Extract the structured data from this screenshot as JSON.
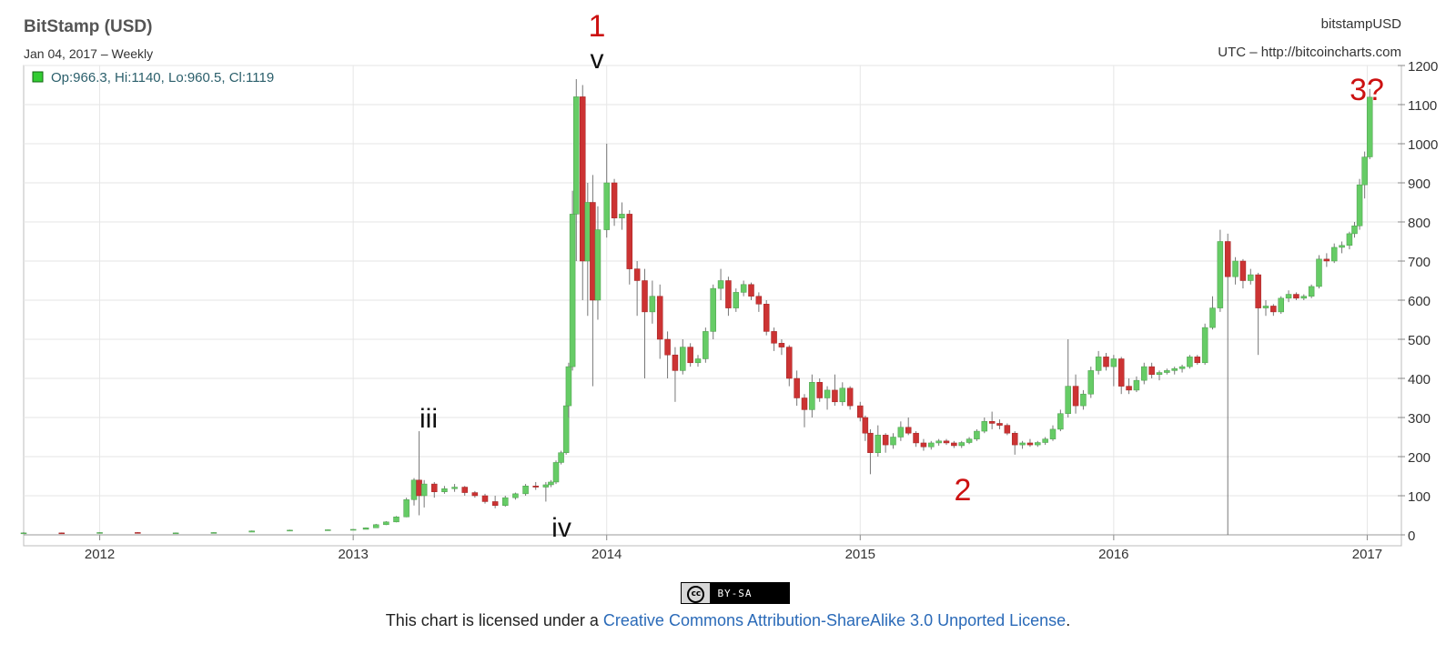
{
  "header": {
    "title": "BitStamp (USD)",
    "subtitle": "Jan 04, 2017 – Weekly",
    "legend": "Op:966.3, Hi:1140, Lo:960.5, Cl:1119",
    "source_right": "bitstampUSD",
    "source_url": "UTC – http://bitcoincharts.com"
  },
  "annotations": {
    "wave_1": "1",
    "wave_v": "v",
    "wave_iii": "iii",
    "wave_iv": "iv",
    "wave_2": "2",
    "wave_3": "3?"
  },
  "footer": {
    "badge_cc": "cc",
    "badge_label": "BY-SA",
    "license_prefix": "This chart is licensed under a ",
    "license_link": "Creative Commons Attribution-ShareAlike 3.0 Unported License",
    "license_suffix": "."
  },
  "colors": {
    "up": "#66cc66",
    "down": "#cc3333",
    "grid": "#e6e6e6",
    "annotation_red": "#cc1111",
    "annotation_black": "#111111"
  },
  "chart_data": {
    "type": "candlestick",
    "title": "BitStamp (USD)",
    "xlim": [
      2011.7,
      2017.02
    ],
    "ylim": [
      0,
      1200
    ],
    "yticks": [
      0,
      100,
      200,
      300,
      400,
      500,
      600,
      700,
      800,
      900,
      1000,
      1100,
      1200
    ],
    "xticks": [
      {
        "label": "2012",
        "value": 2012
      },
      {
        "label": "2013",
        "value": 2013
      },
      {
        "label": "2014",
        "value": 2014
      },
      {
        "label": "2015",
        "value": 2015
      },
      {
        "label": "2016",
        "value": 2016
      },
      {
        "label": "2017",
        "value": 2017
      }
    ],
    "grid": true,
    "ohlc": [
      {
        "t": 2011.7,
        "o": 5,
        "h": 7,
        "l": 3,
        "c": 5
      },
      {
        "t": 2011.85,
        "o": 5,
        "h": 6,
        "l": 3,
        "c": 4
      },
      {
        "t": 2012.0,
        "o": 4,
        "h": 7,
        "l": 4,
        "c": 6
      },
      {
        "t": 2012.15,
        "o": 6,
        "h": 7,
        "l": 4,
        "c": 5
      },
      {
        "t": 2012.3,
        "o": 5,
        "h": 6,
        "l": 4,
        "c": 5
      },
      {
        "t": 2012.45,
        "o": 5,
        "h": 7,
        "l": 5,
        "c": 6
      },
      {
        "t": 2012.6,
        "o": 7,
        "h": 11,
        "l": 7,
        "c": 10
      },
      {
        "t": 2012.75,
        "o": 11,
        "h": 13,
        "l": 10,
        "c": 12
      },
      {
        "t": 2012.9,
        "o": 12,
        "h": 14,
        "l": 11,
        "c": 13
      },
      {
        "t": 2013.0,
        "o": 13,
        "h": 15,
        "l": 13,
        "c": 14
      },
      {
        "t": 2013.05,
        "o": 14,
        "h": 19,
        "l": 14,
        "c": 18
      },
      {
        "t": 2013.09,
        "o": 18,
        "h": 28,
        "l": 18,
        "c": 26
      },
      {
        "t": 2013.13,
        "o": 26,
        "h": 35,
        "l": 25,
        "c": 33
      },
      {
        "t": 2013.17,
        "o": 33,
        "h": 48,
        "l": 32,
        "c": 46
      },
      {
        "t": 2013.21,
        "o": 46,
        "h": 95,
        "l": 45,
        "c": 90
      },
      {
        "t": 2013.24,
        "o": 90,
        "h": 145,
        "l": 75,
        "c": 140
      },
      {
        "t": 2013.26,
        "o": 140,
        "h": 265,
        "l": 50,
        "c": 100
      },
      {
        "t": 2013.28,
        "o": 100,
        "h": 140,
        "l": 70,
        "c": 130
      },
      {
        "t": 2013.32,
        "o": 130,
        "h": 135,
        "l": 95,
        "c": 110
      },
      {
        "t": 2013.36,
        "o": 110,
        "h": 125,
        "l": 105,
        "c": 118
      },
      {
        "t": 2013.4,
        "o": 118,
        "h": 130,
        "l": 110,
        "c": 122
      },
      {
        "t": 2013.44,
        "o": 122,
        "h": 125,
        "l": 100,
        "c": 108
      },
      {
        "t": 2013.48,
        "o": 108,
        "h": 112,
        "l": 95,
        "c": 100
      },
      {
        "t": 2013.52,
        "o": 100,
        "h": 105,
        "l": 80,
        "c": 85
      },
      {
        "t": 2013.56,
        "o": 85,
        "h": 100,
        "l": 68,
        "c": 75
      },
      {
        "t": 2013.6,
        "o": 75,
        "h": 100,
        "l": 72,
        "c": 95
      },
      {
        "t": 2013.64,
        "o": 95,
        "h": 108,
        "l": 90,
        "c": 105
      },
      {
        "t": 2013.68,
        "o": 105,
        "h": 130,
        "l": 100,
        "c": 125
      },
      {
        "t": 2013.72,
        "o": 125,
        "h": 135,
        "l": 115,
        "c": 122
      },
      {
        "t": 2013.76,
        "o": 122,
        "h": 135,
        "l": 85,
        "c": 128
      },
      {
        "t": 2013.78,
        "o": 128,
        "h": 140,
        "l": 122,
        "c": 135
      },
      {
        "t": 2013.8,
        "o": 135,
        "h": 190,
        "l": 130,
        "c": 185
      },
      {
        "t": 2013.82,
        "o": 185,
        "h": 215,
        "l": 180,
        "c": 210
      },
      {
        "t": 2013.84,
        "o": 210,
        "h": 340,
        "l": 205,
        "c": 330
      },
      {
        "t": 2013.85,
        "o": 330,
        "h": 440,
        "l": 300,
        "c": 430
      },
      {
        "t": 2013.865,
        "o": 430,
        "h": 880,
        "l": 420,
        "c": 820
      },
      {
        "t": 2013.88,
        "o": 820,
        "h": 1165,
        "l": 700,
        "c": 1120
      },
      {
        "t": 2013.905,
        "o": 1120,
        "h": 1150,
        "l": 600,
        "c": 700
      },
      {
        "t": 2013.925,
        "o": 700,
        "h": 900,
        "l": 560,
        "c": 850
      },
      {
        "t": 2013.945,
        "o": 850,
        "h": 920,
        "l": 380,
        "c": 600
      },
      {
        "t": 2013.965,
        "o": 600,
        "h": 840,
        "l": 550,
        "c": 780
      },
      {
        "t": 2014.0,
        "o": 780,
        "h": 1000,
        "l": 760,
        "c": 900
      },
      {
        "t": 2014.03,
        "o": 900,
        "h": 910,
        "l": 790,
        "c": 810
      },
      {
        "t": 2014.06,
        "o": 810,
        "h": 850,
        "l": 780,
        "c": 820
      },
      {
        "t": 2014.09,
        "o": 820,
        "h": 830,
        "l": 640,
        "c": 680
      },
      {
        "t": 2014.12,
        "o": 680,
        "h": 700,
        "l": 560,
        "c": 650
      },
      {
        "t": 2014.15,
        "o": 650,
        "h": 680,
        "l": 400,
        "c": 570
      },
      {
        "t": 2014.18,
        "o": 570,
        "h": 650,
        "l": 540,
        "c": 610
      },
      {
        "t": 2014.21,
        "o": 610,
        "h": 640,
        "l": 450,
        "c": 500
      },
      {
        "t": 2014.24,
        "o": 500,
        "h": 520,
        "l": 400,
        "c": 460
      },
      {
        "t": 2014.27,
        "o": 460,
        "h": 480,
        "l": 340,
        "c": 420
      },
      {
        "t": 2014.3,
        "o": 420,
        "h": 500,
        "l": 410,
        "c": 480
      },
      {
        "t": 2014.33,
        "o": 480,
        "h": 490,
        "l": 430,
        "c": 440
      },
      {
        "t": 2014.36,
        "o": 440,
        "h": 460,
        "l": 430,
        "c": 450
      },
      {
        "t": 2014.39,
        "o": 450,
        "h": 530,
        "l": 440,
        "c": 520
      },
      {
        "t": 2014.42,
        "o": 520,
        "h": 640,
        "l": 500,
        "c": 630
      },
      {
        "t": 2014.45,
        "o": 630,
        "h": 680,
        "l": 600,
        "c": 650
      },
      {
        "t": 2014.48,
        "o": 650,
        "h": 660,
        "l": 560,
        "c": 580
      },
      {
        "t": 2014.51,
        "o": 580,
        "h": 630,
        "l": 570,
        "c": 620
      },
      {
        "t": 2014.54,
        "o": 620,
        "h": 650,
        "l": 610,
        "c": 640
      },
      {
        "t": 2014.57,
        "o": 640,
        "h": 645,
        "l": 600,
        "c": 610
      },
      {
        "t": 2014.6,
        "o": 610,
        "h": 620,
        "l": 570,
        "c": 590
      },
      {
        "t": 2014.63,
        "o": 590,
        "h": 600,
        "l": 510,
        "c": 520
      },
      {
        "t": 2014.66,
        "o": 520,
        "h": 530,
        "l": 470,
        "c": 490
      },
      {
        "t": 2014.69,
        "o": 490,
        "h": 500,
        "l": 460,
        "c": 480
      },
      {
        "t": 2014.72,
        "o": 480,
        "h": 485,
        "l": 380,
        "c": 400
      },
      {
        "t": 2014.75,
        "o": 400,
        "h": 420,
        "l": 330,
        "c": 350
      },
      {
        "t": 2014.78,
        "o": 350,
        "h": 360,
        "l": 275,
        "c": 320
      },
      {
        "t": 2014.81,
        "o": 320,
        "h": 410,
        "l": 300,
        "c": 390
      },
      {
        "t": 2014.84,
        "o": 390,
        "h": 400,
        "l": 340,
        "c": 350
      },
      {
        "t": 2014.87,
        "o": 350,
        "h": 380,
        "l": 320,
        "c": 370
      },
      {
        "t": 2014.9,
        "o": 370,
        "h": 410,
        "l": 330,
        "c": 340
      },
      {
        "t": 2014.93,
        "o": 340,
        "h": 390,
        "l": 330,
        "c": 375
      },
      {
        "t": 2014.96,
        "o": 375,
        "h": 380,
        "l": 320,
        "c": 330
      },
      {
        "t": 2015.0,
        "o": 330,
        "h": 340,
        "l": 290,
        "c": 300
      },
      {
        "t": 2015.02,
        "o": 300,
        "h": 305,
        "l": 240,
        "c": 260
      },
      {
        "t": 2015.04,
        "o": 260,
        "h": 270,
        "l": 155,
        "c": 210
      },
      {
        "t": 2015.07,
        "o": 210,
        "h": 280,
        "l": 200,
        "c": 255
      },
      {
        "t": 2015.1,
        "o": 255,
        "h": 260,
        "l": 210,
        "c": 230
      },
      {
        "t": 2015.13,
        "o": 230,
        "h": 260,
        "l": 220,
        "c": 250
      },
      {
        "t": 2015.16,
        "o": 250,
        "h": 290,
        "l": 240,
        "c": 275
      },
      {
        "t": 2015.19,
        "o": 275,
        "h": 300,
        "l": 255,
        "c": 260
      },
      {
        "t": 2015.22,
        "o": 260,
        "h": 265,
        "l": 225,
        "c": 235
      },
      {
        "t": 2015.25,
        "o": 235,
        "h": 245,
        "l": 215,
        "c": 225
      },
      {
        "t": 2015.28,
        "o": 225,
        "h": 240,
        "l": 218,
        "c": 235
      },
      {
        "t": 2015.31,
        "o": 235,
        "h": 245,
        "l": 228,
        "c": 240
      },
      {
        "t": 2015.34,
        "o": 240,
        "h": 245,
        "l": 230,
        "c": 235
      },
      {
        "t": 2015.37,
        "o": 235,
        "h": 240,
        "l": 222,
        "c": 228
      },
      {
        "t": 2015.4,
        "o": 228,
        "h": 240,
        "l": 222,
        "c": 236
      },
      {
        "t": 2015.43,
        "o": 236,
        "h": 250,
        "l": 232,
        "c": 245
      },
      {
        "t": 2015.46,
        "o": 245,
        "h": 270,
        "l": 240,
        "c": 265
      },
      {
        "t": 2015.49,
        "o": 265,
        "h": 300,
        "l": 260,
        "c": 290
      },
      {
        "t": 2015.52,
        "o": 290,
        "h": 315,
        "l": 270,
        "c": 285
      },
      {
        "t": 2015.55,
        "o": 285,
        "h": 295,
        "l": 270,
        "c": 280
      },
      {
        "t": 2015.58,
        "o": 280,
        "h": 285,
        "l": 255,
        "c": 260
      },
      {
        "t": 2015.61,
        "o": 260,
        "h": 265,
        "l": 205,
        "c": 230
      },
      {
        "t": 2015.64,
        "o": 230,
        "h": 240,
        "l": 220,
        "c": 235
      },
      {
        "t": 2015.67,
        "o": 235,
        "h": 245,
        "l": 225,
        "c": 230
      },
      {
        "t": 2015.7,
        "o": 230,
        "h": 240,
        "l": 225,
        "c": 236
      },
      {
        "t": 2015.73,
        "o": 236,
        "h": 250,
        "l": 230,
        "c": 245
      },
      {
        "t": 2015.76,
        "o": 245,
        "h": 280,
        "l": 240,
        "c": 270
      },
      {
        "t": 2015.79,
        "o": 270,
        "h": 320,
        "l": 265,
        "c": 310
      },
      {
        "t": 2015.82,
        "o": 310,
        "h": 500,
        "l": 300,
        "c": 380
      },
      {
        "t": 2015.85,
        "o": 380,
        "h": 410,
        "l": 310,
        "c": 330
      },
      {
        "t": 2015.88,
        "o": 330,
        "h": 370,
        "l": 320,
        "c": 360
      },
      {
        "t": 2015.91,
        "o": 360,
        "h": 430,
        "l": 350,
        "c": 420
      },
      {
        "t": 2015.94,
        "o": 420,
        "h": 470,
        "l": 410,
        "c": 455
      },
      {
        "t": 2015.97,
        "o": 455,
        "h": 465,
        "l": 420,
        "c": 430
      },
      {
        "t": 2016.0,
        "o": 430,
        "h": 460,
        "l": 380,
        "c": 450
      },
      {
        "t": 2016.03,
        "o": 450,
        "h": 455,
        "l": 360,
        "c": 380
      },
      {
        "t": 2016.06,
        "o": 380,
        "h": 400,
        "l": 360,
        "c": 370
      },
      {
        "t": 2016.09,
        "o": 370,
        "h": 405,
        "l": 365,
        "c": 395
      },
      {
        "t": 2016.12,
        "o": 395,
        "h": 440,
        "l": 385,
        "c": 430
      },
      {
        "t": 2016.15,
        "o": 430,
        "h": 440,
        "l": 400,
        "c": 410
      },
      {
        "t": 2016.18,
        "o": 410,
        "h": 420,
        "l": 395,
        "c": 415
      },
      {
        "t": 2016.21,
        "o": 415,
        "h": 425,
        "l": 410,
        "c": 420
      },
      {
        "t": 2016.24,
        "o": 420,
        "h": 430,
        "l": 410,
        "c": 425
      },
      {
        "t": 2016.27,
        "o": 425,
        "h": 435,
        "l": 415,
        "c": 430
      },
      {
        "t": 2016.3,
        "o": 430,
        "h": 460,
        "l": 425,
        "c": 455
      },
      {
        "t": 2016.33,
        "o": 455,
        "h": 460,
        "l": 435,
        "c": 440
      },
      {
        "t": 2016.36,
        "o": 440,
        "h": 540,
        "l": 435,
        "c": 530
      },
      {
        "t": 2016.39,
        "o": 530,
        "h": 610,
        "l": 525,
        "c": 580
      },
      {
        "t": 2016.42,
        "o": 580,
        "h": 780,
        "l": 570,
        "c": 750
      },
      {
        "t": 2016.45,
        "o": 750,
        "h": 770,
        "l": 0,
        "c": 660
      },
      {
        "t": 2016.48,
        "o": 660,
        "h": 710,
        "l": 640,
        "c": 700
      },
      {
        "t": 2016.51,
        "o": 700,
        "h": 705,
        "l": 630,
        "c": 650
      },
      {
        "t": 2016.54,
        "o": 650,
        "h": 680,
        "l": 640,
        "c": 665
      },
      {
        "t": 2016.57,
        "o": 665,
        "h": 670,
        "l": 460,
        "c": 580
      },
      {
        "t": 2016.6,
        "o": 580,
        "h": 600,
        "l": 560,
        "c": 585
      },
      {
        "t": 2016.63,
        "o": 585,
        "h": 590,
        "l": 560,
        "c": 570
      },
      {
        "t": 2016.66,
        "o": 570,
        "h": 610,
        "l": 565,
        "c": 605
      },
      {
        "t": 2016.69,
        "o": 605,
        "h": 625,
        "l": 595,
        "c": 615
      },
      {
        "t": 2016.72,
        "o": 615,
        "h": 620,
        "l": 600,
        "c": 605
      },
      {
        "t": 2016.75,
        "o": 605,
        "h": 615,
        "l": 600,
        "c": 610
      },
      {
        "t": 2016.78,
        "o": 610,
        "h": 640,
        "l": 605,
        "c": 635
      },
      {
        "t": 2016.81,
        "o": 635,
        "h": 715,
        "l": 630,
        "c": 705
      },
      {
        "t": 2016.84,
        "o": 705,
        "h": 720,
        "l": 685,
        "c": 700
      },
      {
        "t": 2016.87,
        "o": 700,
        "h": 745,
        "l": 695,
        "c": 735
      },
      {
        "t": 2016.9,
        "o": 735,
        "h": 750,
        "l": 720,
        "c": 740
      },
      {
        "t": 2016.93,
        "o": 740,
        "h": 775,
        "l": 730,
        "c": 770
      },
      {
        "t": 2016.95,
        "o": 770,
        "h": 800,
        "l": 760,
        "c": 790
      },
      {
        "t": 2016.97,
        "o": 790,
        "h": 910,
        "l": 780,
        "c": 895
      },
      {
        "t": 2016.99,
        "o": 895,
        "h": 980,
        "l": 860,
        "c": 966
      },
      {
        "t": 2017.01,
        "o": 966.3,
        "h": 1140,
        "l": 960.5,
        "c": 1119
      }
    ]
  }
}
